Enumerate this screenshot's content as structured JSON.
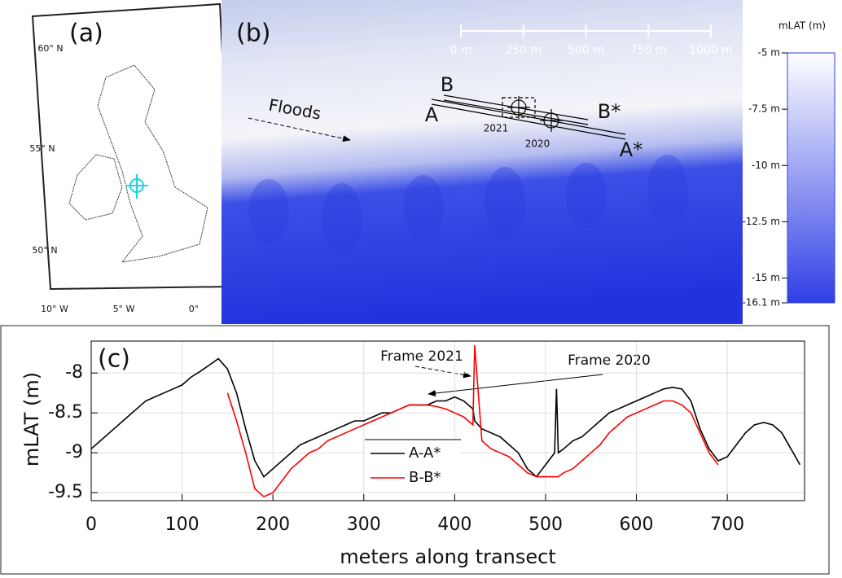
{
  "panel_a": {
    "label": "(a)",
    "lat_labels": [
      "60° N",
      "55° N",
      "50° N"
    ],
    "lon_labels": [
      "10° W",
      "5° W",
      "0°"
    ]
  },
  "panel_b": {
    "label": "(b)",
    "flow_label": "Floods",
    "transect_labels": [
      "A",
      "B",
      "B*",
      "A*"
    ],
    "frame_labels": [
      "2021",
      "2020"
    ],
    "scale_bar": {
      "range": [
        0,
        1000
      ],
      "ticks": [
        {
          "value": 0,
          "label": "0 m"
        },
        {
          "value": 250,
          "label": "250 m"
        },
        {
          "value": 500,
          "label": "500 m"
        },
        {
          "value": 750,
          "label": "750 m"
        },
        {
          "value": 1000,
          "label": "1000 m"
        }
      ]
    },
    "colorbar": {
      "title": "mLAT (m)",
      "lim": [
        -16.1,
        -5
      ],
      "ticks": [
        {
          "value": -5,
          "label": "-5 m"
        },
        {
          "value": -7.5,
          "label": "-7.5 m"
        },
        {
          "value": -10,
          "label": "-10 m"
        },
        {
          "value": -12.5,
          "label": "-12.5 m"
        },
        {
          "value": -15,
          "label": "-15 m"
        },
        {
          "value": -16.1,
          "label": "-16.1 m"
        }
      ]
    }
  },
  "chart_data": {
    "type": "line",
    "panel_label": "(c)",
    "x_label": "meters along transect",
    "y_label": "mLAT (m)",
    "annotations": [
      "Frame 2021",
      "Frame 2020"
    ],
    "xlim": [
      0,
      785
    ],
    "ylim": [
      -9.6,
      -7.6
    ],
    "xticks": [
      0,
      100,
      200,
      300,
      400,
      500,
      600,
      700
    ],
    "yticks": [
      -8,
      -8.5,
      -9,
      -9.5
    ],
    "grid": true,
    "x": [
      0,
      10,
      20,
      30,
      40,
      50,
      60,
      70,
      80,
      90,
      100,
      110,
      120,
      130,
      140,
      150,
      160,
      170,
      180,
      190,
      200,
      210,
      220,
      230,
      240,
      250,
      260,
      270,
      280,
      290,
      300,
      310,
      320,
      330,
      340,
      350,
      360,
      370,
      380,
      390,
      400,
      410,
      420,
      422,
      430,
      440,
      450,
      460,
      470,
      480,
      490,
      500,
      510,
      512,
      514,
      520,
      530,
      540,
      550,
      560,
      570,
      580,
      590,
      600,
      610,
      620,
      630,
      640,
      650,
      660,
      670,
      680,
      690,
      700,
      710,
      720,
      730,
      740,
      750,
      760,
      770,
      780
    ],
    "series": [
      {
        "name": "A-A*",
        "color": "#000000",
        "values": [
          -8.95,
          -8.85,
          -8.75,
          -8.65,
          -8.55,
          -8.45,
          -8.35,
          -8.3,
          -8.25,
          -8.2,
          -8.15,
          -8.05,
          -7.98,
          -7.9,
          -7.82,
          -7.95,
          -8.25,
          -8.7,
          -9.1,
          -9.3,
          -9.2,
          -9.1,
          -9.0,
          -8.9,
          -8.85,
          -8.8,
          -8.75,
          -8.7,
          -8.65,
          -8.6,
          -8.6,
          -8.55,
          -8.5,
          -8.5,
          -8.45,
          -8.4,
          -8.4,
          -8.4,
          -8.35,
          -8.35,
          -8.3,
          -8.35,
          -8.45,
          -8.6,
          -8.7,
          -8.75,
          -8.8,
          -8.9,
          -9.0,
          -9.2,
          -9.3,
          -9.15,
          -9.0,
          -8.2,
          -9.0,
          -8.95,
          -8.85,
          -8.8,
          -8.7,
          -8.6,
          -8.5,
          -8.45,
          -8.4,
          -8.35,
          -8.3,
          -8.25,
          -8.2,
          -8.18,
          -8.2,
          -8.35,
          -8.7,
          -8.95,
          -9.1,
          -9.05,
          -8.9,
          -8.75,
          -8.65,
          -8.62,
          -8.65,
          -8.75,
          -8.95,
          -9.15
        ]
      },
      {
        "name": "B-B*",
        "color": "#ff0000",
        "values": [
          null,
          null,
          null,
          null,
          null,
          null,
          null,
          null,
          null,
          null,
          null,
          null,
          null,
          null,
          null,
          -8.25,
          -8.6,
          -9.0,
          -9.45,
          -9.55,
          -9.5,
          -9.35,
          -9.2,
          -9.1,
          -9.0,
          -8.95,
          -8.85,
          -8.8,
          -8.75,
          -8.7,
          -8.65,
          -8.6,
          -8.55,
          -8.5,
          -8.45,
          -8.4,
          -8.4,
          -8.4,
          -8.42,
          -8.45,
          -8.5,
          -8.55,
          -8.65,
          -7.65,
          -8.85,
          -8.95,
          -9.0,
          -9.05,
          -9.15,
          -9.25,
          -9.3,
          -9.3,
          -9.3,
          -9.3,
          -9.3,
          -9.25,
          -9.2,
          -9.1,
          -9.0,
          -8.9,
          -8.75,
          -8.65,
          -8.55,
          -8.5,
          -8.45,
          -8.4,
          -8.35,
          -8.35,
          -8.4,
          -8.5,
          -8.75,
          -9.0,
          -9.15,
          null,
          null,
          null,
          null,
          null,
          null,
          null,
          null,
          null
        ]
      }
    ]
  }
}
